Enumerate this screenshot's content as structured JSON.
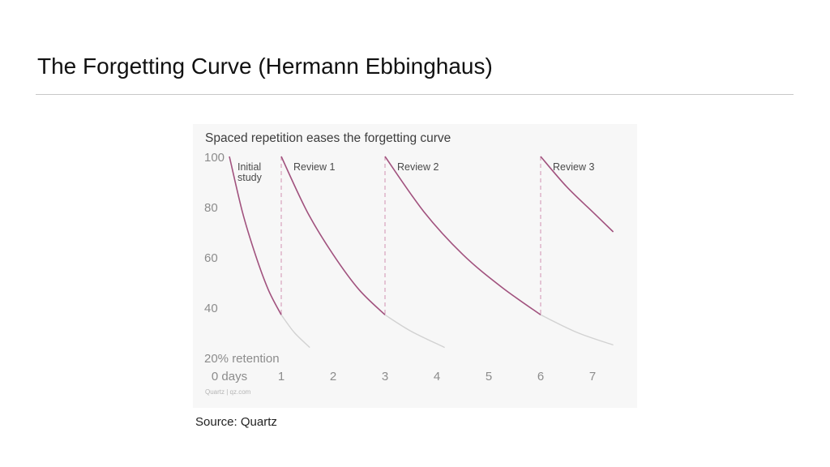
{
  "slide": {
    "title": "The Forgetting Curve (Hermann Ebbinghaus)",
    "source": "Source: Quartz"
  },
  "colors": {
    "curve_active": "#a1527e",
    "curve_faded": "#d2d2d2",
    "review_marker": "#dba8c1",
    "panel_bg": "#f7f7f7",
    "tick_text": "#8c8c8c",
    "title_text": "#3d3d3d"
  },
  "chart_data": {
    "type": "line",
    "title": "Spaced repetition eases the forgetting curve",
    "credit": "Quartz | qz.com",
    "xlim": [
      0,
      7.4
    ],
    "ylim": [
      20,
      100
    ],
    "grid": false,
    "x_ticks": [
      {
        "value": 0,
        "label": "0 days"
      },
      {
        "value": 1,
        "label": "1"
      },
      {
        "value": 2,
        "label": "2"
      },
      {
        "value": 3,
        "label": "3"
      },
      {
        "value": 4,
        "label": "4"
      },
      {
        "value": 5,
        "label": "5"
      },
      {
        "value": 6,
        "label": "6"
      },
      {
        "value": 7,
        "label": "7"
      }
    ],
    "y_ticks": [
      {
        "value": 100,
        "label": "100"
      },
      {
        "value": 80,
        "label": "80"
      },
      {
        "value": 60,
        "label": "60"
      },
      {
        "value": 40,
        "label": "40"
      },
      {
        "value": 20,
        "label": "20% retention"
      }
    ],
    "reviews": [
      {
        "x": 1,
        "label": "Review 1"
      },
      {
        "x": 3,
        "label": "Review 2"
      },
      {
        "x": 6,
        "label": "Review 3"
      }
    ],
    "annotations": [
      {
        "text": "Initial",
        "x": 0.15,
        "y": 100
      },
      {
        "text": "study",
        "x": 0.15,
        "y": 96
      }
    ],
    "series": [
      {
        "start_x": 0,
        "end_x": 1,
        "faded_end_x": 1.55,
        "points": [
          [
            0,
            100
          ],
          [
            0.25,
            78
          ],
          [
            0.5,
            61
          ],
          [
            0.75,
            47
          ],
          [
            1,
            37
          ]
        ],
        "faded_points": [
          [
            1,
            37
          ],
          [
            1.25,
            30
          ],
          [
            1.55,
            24
          ]
        ]
      },
      {
        "start_x": 1,
        "end_x": 3,
        "faded_end_x": 4.15,
        "points": [
          [
            1,
            100
          ],
          [
            1.5,
            78
          ],
          [
            2,
            61
          ],
          [
            2.5,
            47
          ],
          [
            3,
            37
          ]
        ],
        "faded_points": [
          [
            3,
            37
          ],
          [
            3.5,
            30.5
          ],
          [
            4.15,
            24
          ]
        ]
      },
      {
        "start_x": 3,
        "end_x": 6,
        "faded_end_x": 7.4,
        "points": [
          [
            3,
            100
          ],
          [
            3.75,
            78
          ],
          [
            4.5,
            61
          ],
          [
            5.25,
            48
          ],
          [
            6,
            37
          ]
        ],
        "faded_points": [
          [
            6,
            37
          ],
          [
            6.7,
            30
          ],
          [
            7.4,
            25
          ]
        ]
      },
      {
        "start_x": 6,
        "end_x": 7.4,
        "points": [
          [
            6,
            100
          ],
          [
            6.5,
            88
          ],
          [
            7,
            78
          ],
          [
            7.4,
            70
          ]
        ]
      }
    ]
  }
}
